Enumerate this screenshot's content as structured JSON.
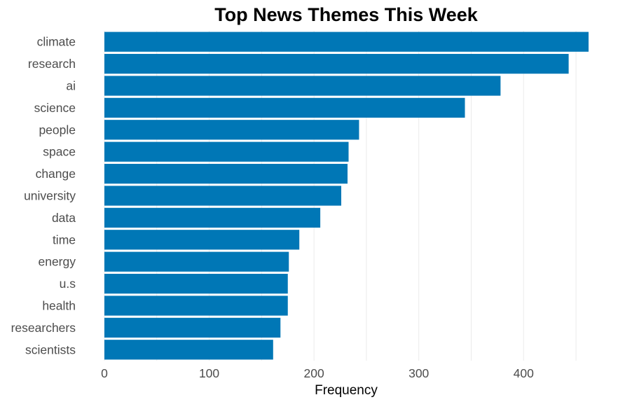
{
  "chart_data": {
    "type": "bar",
    "orientation": "horizontal",
    "title": "Top News Themes This Week",
    "xlabel": "Frequency",
    "ylabel": "",
    "categories": [
      "climate",
      "research",
      "ai",
      "science",
      "people",
      "space",
      "change",
      "university",
      "data",
      "time",
      "energy",
      "u.s",
      "health",
      "researchers",
      "scientists"
    ],
    "values": [
      462,
      443,
      378,
      344,
      243,
      233,
      232,
      226,
      206,
      186,
      176,
      175,
      175,
      168,
      161
    ],
    "xlim": [
      0,
      462
    ],
    "xticks": [
      0,
      100,
      200,
      300,
      400
    ],
    "grid": "vertical",
    "legend": "none",
    "bar_color": "#0077b6"
  }
}
